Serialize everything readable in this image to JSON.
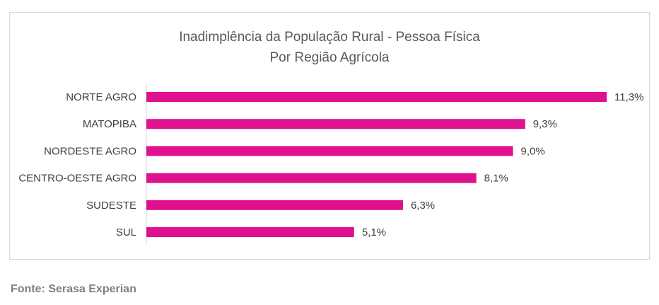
{
  "chart_data": {
    "type": "bar",
    "orientation": "horizontal",
    "title": "Inadimplência da População Rural - Pessoa Física",
    "subtitle": "Por Região Agrícola",
    "categories": [
      "NORTE AGRO",
      "MATOPIBA",
      "NORDESTE AGRO",
      "CENTRO-OESTE AGRO",
      "SUDESTE",
      "SUL"
    ],
    "values": [
      11.3,
      9.3,
      9.0,
      8.1,
      6.3,
      5.1
    ],
    "value_labels": [
      "11,3%",
      "9,3%",
      "9,0%",
      "8,1%",
      "6,3%",
      "5,1%"
    ],
    "unit": "%",
    "xlim": [
      0,
      11.3
    ],
    "bar_color": "#e0118f",
    "grid": false,
    "legend": "none"
  },
  "source": "Fonte: Serasa Experian"
}
